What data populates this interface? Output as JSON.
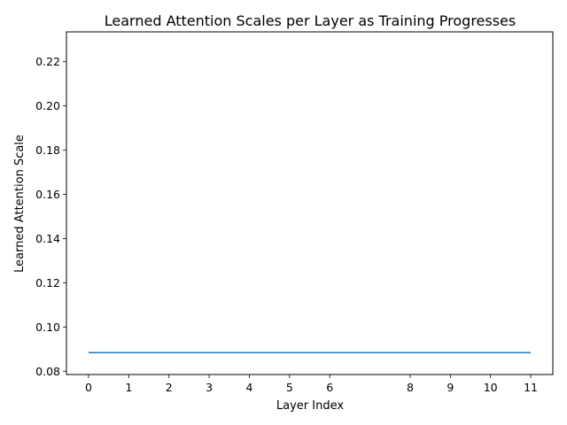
{
  "chart_data": {
    "type": "line",
    "title": "Learned Attention Scales per Layer as Training Progresses",
    "xlabel": "Layer Index",
    "ylabel": "Learned Attention Scale",
    "xticks": [
      0,
      1,
      2,
      3,
      4,
      5,
      6,
      8,
      9,
      10,
      11
    ],
    "yticks": [
      0.08,
      0.1,
      0.12,
      0.14,
      0.16,
      0.18,
      0.2,
      0.22
    ],
    "xlim": [
      -0.55,
      11.55
    ],
    "ylim": [
      0.0785,
      0.2335
    ],
    "grid": false,
    "series": [
      {
        "color": "#1f77b4",
        "x": [
          0,
          1,
          2,
          3,
          4,
          5,
          6,
          7,
          8,
          9,
          10,
          11
        ],
        "y": [
          0.0884,
          0.0884,
          0.0884,
          0.0884,
          0.0884,
          0.0884,
          0.0884,
          0.0884,
          0.0884,
          0.0884,
          0.0884,
          0.0884
        ]
      }
    ]
  }
}
